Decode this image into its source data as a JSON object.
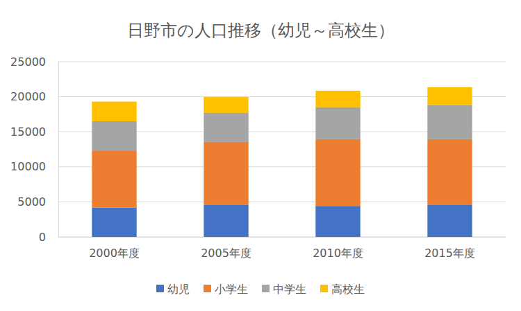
{
  "chart_data": {
    "type": "bar",
    "title": "日野市の人口推移（幼児～高校生）",
    "categories": [
      "2000年度",
      "2005年度",
      "2010年度",
      "2015年度"
    ],
    "series": [
      {
        "name": "幼児",
        "color": "#4472c4",
        "values": [
          4200,
          4550,
          4350,
          4550
        ]
      },
      {
        "name": "小学生",
        "color": "#ed7d31",
        "values": [
          8050,
          9000,
          9600,
          9400
        ]
      },
      {
        "name": "中学生",
        "color": "#a5a5a5",
        "values": [
          4250,
          4150,
          4550,
          4850
        ]
      },
      {
        "name": "高校生",
        "color": "#ffc000",
        "values": [
          2800,
          2250,
          2350,
          2550
        ]
      }
    ],
    "stacked": true,
    "ylim": [
      0,
      25000
    ],
    "yticks": [
      0,
      5000,
      10000,
      15000,
      20000,
      25000
    ],
    "grid": true,
    "legend": "bottom"
  }
}
